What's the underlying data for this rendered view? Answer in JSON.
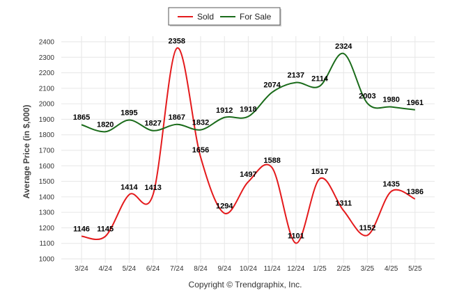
{
  "chart_data": {
    "type": "line",
    "title": "",
    "ylabel": "Average Price (in $,000)",
    "xlabel": "",
    "ylim": [
      1000,
      2400
    ],
    "yticks": [
      1000,
      1100,
      1200,
      1300,
      1400,
      1500,
      1600,
      1700,
      1800,
      1900,
      2000,
      2100,
      2200,
      2300,
      2400
    ],
    "categories": [
      "3/24",
      "4/24",
      "5/24",
      "6/24",
      "7/24",
      "8/24",
      "9/24",
      "10/24",
      "11/24",
      "12/24",
      "1/25",
      "2/25",
      "3/25",
      "4/25",
      "5/25"
    ],
    "legend_position": "top-center",
    "grid": true,
    "series": [
      {
        "name": "Sold",
        "color": "#e41a1c",
        "values": [
          1146,
          1145,
          1414,
          1413,
          2358,
          1656,
          1294,
          1497,
          1588,
          1101,
          1517,
          1311,
          1152,
          1435,
          1386
        ]
      },
      {
        "name": "For Sale",
        "color": "#1a6b1a",
        "values": [
          1865,
          1820,
          1895,
          1827,
          1867,
          1832,
          1912,
          1918,
          2074,
          2137,
          2114,
          2324,
          2003,
          1980,
          1961
        ]
      }
    ]
  },
  "footer": {
    "copyright": "Copyright © Trendgraphix, Inc."
  }
}
